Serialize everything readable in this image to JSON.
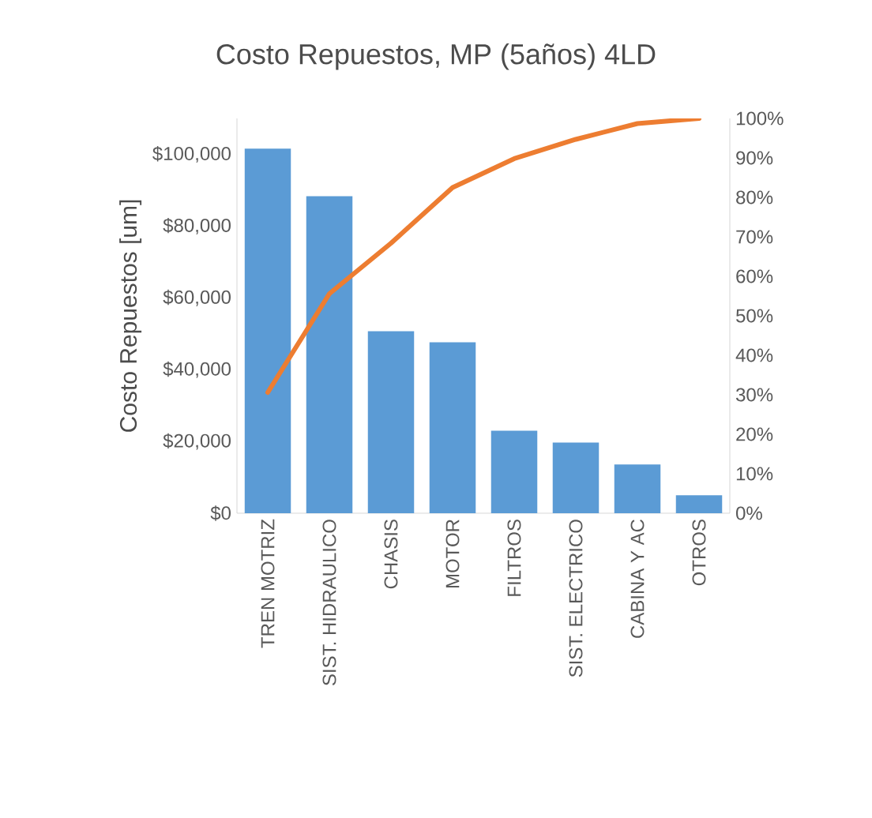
{
  "chart_data": {
    "type": "bar",
    "title": "Costo Repuestos, MP (5años) 4LD",
    "ylabel": "Costo Repuestos [um]",
    "categories": [
      "TREN MOTRIZ",
      "SIST. HIDRAULICO",
      "CHASIS",
      "MOTOR",
      "FILTROS",
      "SIST. ELECTRICO",
      "CABINA Y AC",
      "OTROS"
    ],
    "series": [
      {
        "color": "#5b9bd5",
        "values": [
          101600,
          88300,
          50700,
          47600,
          23000,
          19700,
          13600,
          5000
        ]
      },
      {
        "type": "line",
        "axis": "y2",
        "color": "#ed7d31",
        "values": [
          30.6,
          55.6,
          68.4,
          82.5,
          89.8,
          94.7,
          98.7,
          100
        ]
      }
    ],
    "ylim": [
      0,
      110000
    ],
    "yticks": [
      {
        "value": 0,
        "label": "$0"
      },
      {
        "value": 20000,
        "label": "$20,000"
      },
      {
        "value": 40000,
        "label": "$40,000"
      },
      {
        "value": 60000,
        "label": "$60,000"
      },
      {
        "value": 80000,
        "label": "$80,000"
      },
      {
        "value": 100000,
        "label": "$100,000"
      }
    ],
    "y2lim": [
      0,
      100
    ],
    "y2ticks": [
      {
        "value": 0,
        "label": "0%"
      },
      {
        "value": 10,
        "label": "10%"
      },
      {
        "value": 20,
        "label": "20%"
      },
      {
        "value": 30,
        "label": "30%"
      },
      {
        "value": 40,
        "label": "40%"
      },
      {
        "value": 50,
        "label": "50%"
      },
      {
        "value": 60,
        "label": "60%"
      },
      {
        "value": 70,
        "label": "70%"
      },
      {
        "value": 80,
        "label": "80%"
      },
      {
        "value": 90,
        "label": "90%"
      },
      {
        "value": 100,
        "label": "100%"
      }
    ]
  }
}
